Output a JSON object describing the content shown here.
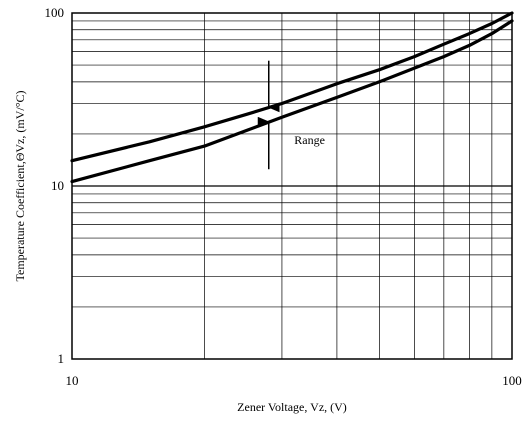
{
  "chart_data": {
    "type": "line",
    "title": "",
    "xlabel": "Zener Voltage, Vz, (V)",
    "ylabel": "Temperature Coefficient,ΘVz,  (mV/°C)",
    "xscale": "log",
    "yscale": "log",
    "xlim": [
      10,
      100
    ],
    "ylim": [
      1,
      100
    ],
    "xticks": [
      {
        "value": 10,
        "label": "10"
      },
      {
        "value": 100,
        "label": "100"
      }
    ],
    "yticks": [
      {
        "value": 1,
        "label": "1"
      },
      {
        "value": 10,
        "label": "10"
      },
      {
        "value": 100,
        "label": "100"
      }
    ],
    "grid": true,
    "series": [
      {
        "points": [
          [
            10,
            14
          ],
          [
            15,
            18
          ],
          [
            20,
            22
          ],
          [
            25,
            26
          ],
          [
            30,
            30
          ],
          [
            40,
            39
          ],
          [
            50,
            47
          ],
          [
            60,
            56
          ],
          [
            70,
            66
          ],
          [
            80,
            76
          ],
          [
            90,
            87
          ],
          [
            100,
            100
          ]
        ]
      },
      {
        "points": [
          [
            10,
            10.6
          ],
          [
            15,
            14
          ],
          [
            20,
            17
          ],
          [
            25,
            21
          ],
          [
            30,
            25
          ],
          [
            40,
            32.5
          ],
          [
            50,
            40
          ],
          [
            60,
            48
          ],
          [
            70,
            56
          ],
          [
            80,
            65
          ],
          [
            90,
            76
          ],
          [
            100,
            90
          ]
        ]
      }
    ],
    "annotations": [
      {
        "text": "Range",
        "x": 32,
        "y": 17.5
      }
    ],
    "arrows": [
      {
        "direction": "down",
        "x": 28,
        "y_from": 53,
        "y_to": 28.5
      },
      {
        "direction": "up",
        "x": 28,
        "y_from": 12.5,
        "y_to": 23.5
      }
    ]
  }
}
